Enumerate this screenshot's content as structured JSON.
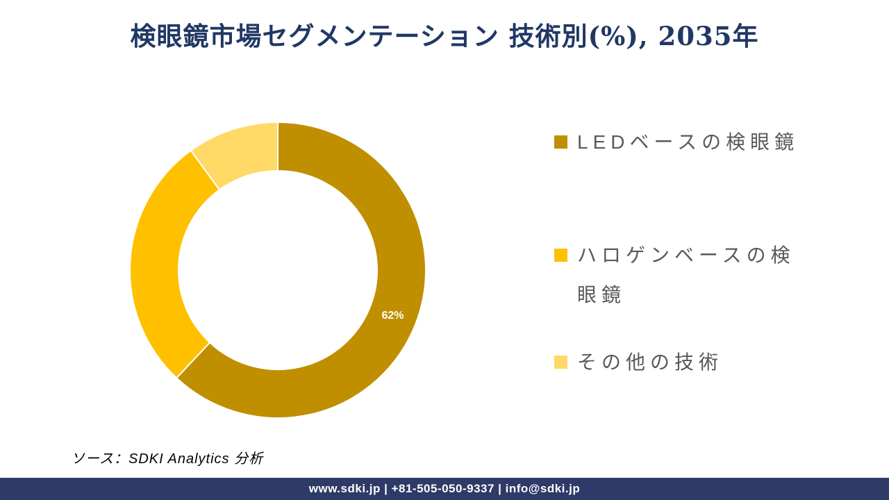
{
  "title": {
    "text": "検眼鏡市場セグメンテーション 技術別(%), 2035年",
    "color": "#203864"
  },
  "chart_data": {
    "type": "pie",
    "subtype": "donut",
    "title": "検眼鏡市場セグメンテーション 技術別(%), 2035年",
    "categories": [
      "LEDベースの検眼鏡",
      "ハロゲンベースの検眼鏡",
      "その他の技術"
    ],
    "values": [
      62,
      28,
      10
    ],
    "unit": "%",
    "colors": [
      "#BF8F00",
      "#FFC000",
      "#FFD966"
    ],
    "data_labels": [
      "62%",
      "",
      ""
    ],
    "data_label_color": "#FFFFFF",
    "start_angle_deg": 0,
    "inner_radius_ratio": 0.67,
    "legend_position": "right",
    "grid": false
  },
  "legend": {
    "text_color": "#595959",
    "items": [
      {
        "label": "LEDベースの検眼鏡",
        "color": "#BF8F00"
      },
      {
        "label": "ハロゲンベースの検眼鏡",
        "color": "#FFC000"
      },
      {
        "label": "その他の技術",
        "color": "#FFD966"
      }
    ]
  },
  "source": {
    "text": "ソース：SDKI Analytics 分析"
  },
  "footer": {
    "text": "www.sdki.jp | +81-505-050-9337 | info@sdki.jp",
    "bg": "#2E3A67",
    "text_color": "#FFFFFF"
  }
}
